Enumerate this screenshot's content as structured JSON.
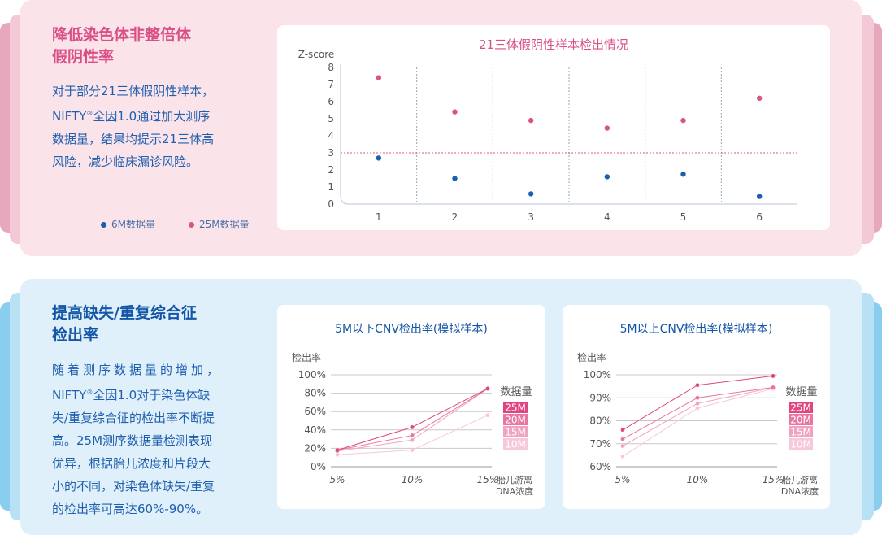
{
  "colors": {
    "pink_panel": "#fbe3ea",
    "pink_tab": "#e7a8bd",
    "pink_title": "#d94f86",
    "blue_panel": "#dff0fb",
    "blue_tab": "#89cdef",
    "blue_title": "#1456a6",
    "body_text": "#1f5fae",
    "dot_6m": "#1a5fb0",
    "dot_25m": "#d9548a",
    "cutoff": "#d9548a"
  },
  "top": {
    "title_line1": "降低染色体非整倍体",
    "title_line2": "假阴性率",
    "text_line1": "对于部分21三体假阴性样本，",
    "text_line2_a": "NIFTY",
    "text_line2_sup": "®",
    "text_line2_b": "全因1.0通过加大测序",
    "text_line3": "数据量，结果均提示21三体高",
    "text_line4": "风险，减少临床漏诊风险。",
    "legend_6m": "6M数据量",
    "legend_25m": "25M数据量"
  },
  "bottom": {
    "title_line1": "提高缺失/重复综合征",
    "title_line2": "检出率",
    "text_line1": "随着测序数据量的增加，",
    "text_line2_a": "NIFTY",
    "text_line2_sup": "®",
    "text_line2_b": "全因1.0对于染色体缺",
    "text_line3": "失/重复综合征的检出率不断提",
    "text_line4": "高。25M测序数据量检测表现",
    "text_line5": "优异，根据胎儿浓度和片段大",
    "text_line6": "小的不同，对染色体缺失/重复",
    "text_line7": "的检出率可高达60%-90%。"
  },
  "chart_data": [
    {
      "type": "scatter",
      "title": "21三体假阴性样本检出情况",
      "ylabel": "Z-score",
      "ylim": [
        0,
        8
      ],
      "yticks": [
        "0",
        "1",
        "2",
        "3",
        "4",
        "5",
        "6",
        "7",
        "8"
      ],
      "categories": [
        "1",
        "2",
        "3",
        "4",
        "5",
        "6"
      ],
      "threshold": 3,
      "series": [
        {
          "name": "6M数据量",
          "color": "#1a5fb0",
          "values": [
            2.7,
            1.5,
            0.6,
            1.6,
            1.75,
            0.45
          ]
        },
        {
          "name": "25M数据量",
          "color": "#d9548a",
          "values": [
            7.4,
            5.4,
            4.9,
            4.45,
            4.9,
            6.2
          ]
        }
      ]
    },
    {
      "type": "line",
      "title": "5M以下CNV检出率(模拟样本)",
      "ylabel": "检出率",
      "xlabel_line1": "胎儿游离",
      "xlabel_line2": "DNA浓度",
      "legend_title": "数据量",
      "categories": [
        "5%",
        "10%",
        "15%"
      ],
      "ylim": [
        0,
        100
      ],
      "yticks": [
        "0%",
        "20%",
        "40%",
        "60%",
        "80%",
        "100%"
      ],
      "series": [
        {
          "name": "25M",
          "color": "#e0457f",
          "values": [
            18,
            43,
            85
          ]
        },
        {
          "name": "20M",
          "color": "#e876a3",
          "values": [
            18,
            34,
            85
          ]
        },
        {
          "name": "15M",
          "color": "#f0a2c1",
          "values": [
            17,
            29,
            85
          ]
        },
        {
          "name": "10M",
          "color": "#f6c8da",
          "values": [
            13,
            18,
            56
          ]
        }
      ]
    },
    {
      "type": "line",
      "title": "5M以上CNV检出率(模拟样本)",
      "ylabel": "检出率",
      "xlabel_line1": "胎儿游离",
      "xlabel_line2": "DNA浓度",
      "legend_title": "数据量",
      "categories": [
        "5%",
        "10%",
        "15%"
      ],
      "ylim": [
        60,
        100
      ],
      "yticks": [
        "60%",
        "70%",
        "80%",
        "90%",
        "100%"
      ],
      "series": [
        {
          "name": "25M",
          "color": "#e0457f",
          "values": [
            76,
            95.5,
            99.5
          ]
        },
        {
          "name": "20M",
          "color": "#e876a3",
          "values": [
            72,
            90,
            94.5
          ]
        },
        {
          "name": "15M",
          "color": "#f0a2c1",
          "values": [
            69,
            87.5,
            94.5
          ]
        },
        {
          "name": "10M",
          "color": "#f6c8da",
          "values": [
            64.5,
            85.5,
            94
          ]
        }
      ]
    }
  ]
}
